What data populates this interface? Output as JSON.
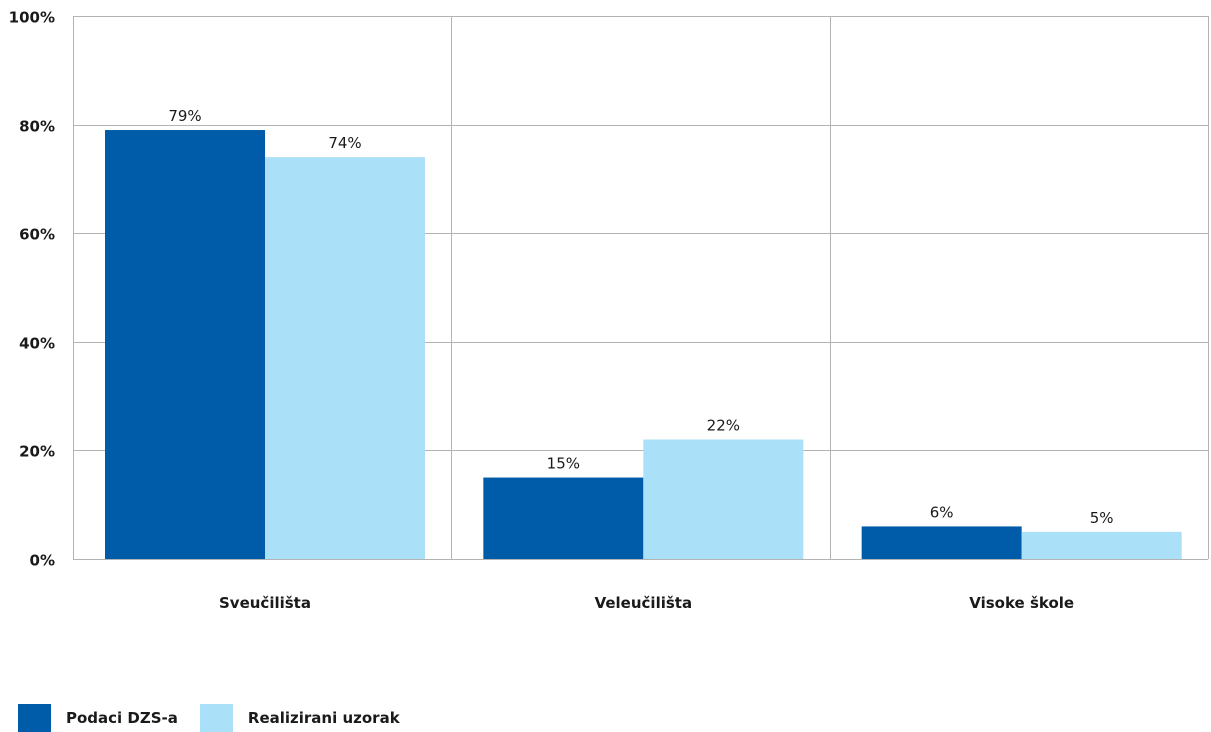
{
  "chart_data": {
    "type": "bar",
    "categories": [
      "Sveučilišta",
      "Veleučilišta",
      "Visoke škole"
    ],
    "series": [
      {
        "name": "Podaci DZS-a",
        "values": [
          79,
          15,
          6
        ],
        "labels": [
          "79%",
          "15%",
          "6%"
        ],
        "color": "#005ca9"
      },
      {
        "name": "Realizirani uzorak",
        "values": [
          74,
          22,
          5
        ],
        "labels": [
          "74%",
          "22%",
          "5%"
        ],
        "color": "#abe0f9"
      }
    ],
    "ylim": [
      0,
      100
    ],
    "yticks": [
      0,
      20,
      40,
      60,
      80,
      100
    ],
    "ytick_labels": [
      "0%",
      "20%",
      "40%",
      "60%",
      "80%",
      "100%"
    ],
    "grid": true,
    "legend_position": "bottom-left"
  },
  "legend": {
    "items": [
      {
        "label": "Podaci DZS-a",
        "color": "#005ca9"
      },
      {
        "label": "Realizirani uzorak",
        "color": "#abe0f9"
      }
    ]
  }
}
